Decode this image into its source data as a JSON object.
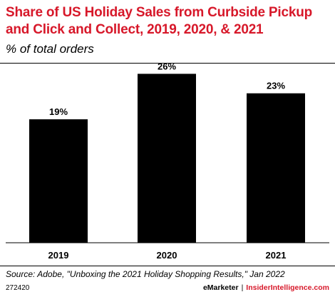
{
  "header": {
    "title": "Share of US Holiday Sales from Curbside Pickup and Click and Collect, 2019, 2020, & 2021",
    "subtitle": "% of total orders"
  },
  "footer": {
    "source": "Source: Adobe, \"Unboxing the 2021 Holiday Shopping Results,\" Jan 2022",
    "chart_id": "272420",
    "brand_left": "eMarketer",
    "brand_separator": "|",
    "brand_right": "InsiderIntelligence.com"
  },
  "colors": {
    "title": "#d7182a",
    "bars": "#000000",
    "brand_accent": "#d7182a"
  },
  "chart_data": {
    "type": "bar",
    "categories": [
      "2019",
      "2020",
      "2021"
    ],
    "values": [
      19,
      26,
      23
    ],
    "data_labels": [
      "19%",
      "26%",
      "23%"
    ],
    "title": "Share of US Holiday Sales from Curbside Pickup and Click and Collect, 2019, 2020, & 2021",
    "subtitle": "% of total orders",
    "xlabel": "",
    "ylabel": "",
    "ylim": [
      0,
      30
    ],
    "grid": false,
    "legend": "none"
  }
}
